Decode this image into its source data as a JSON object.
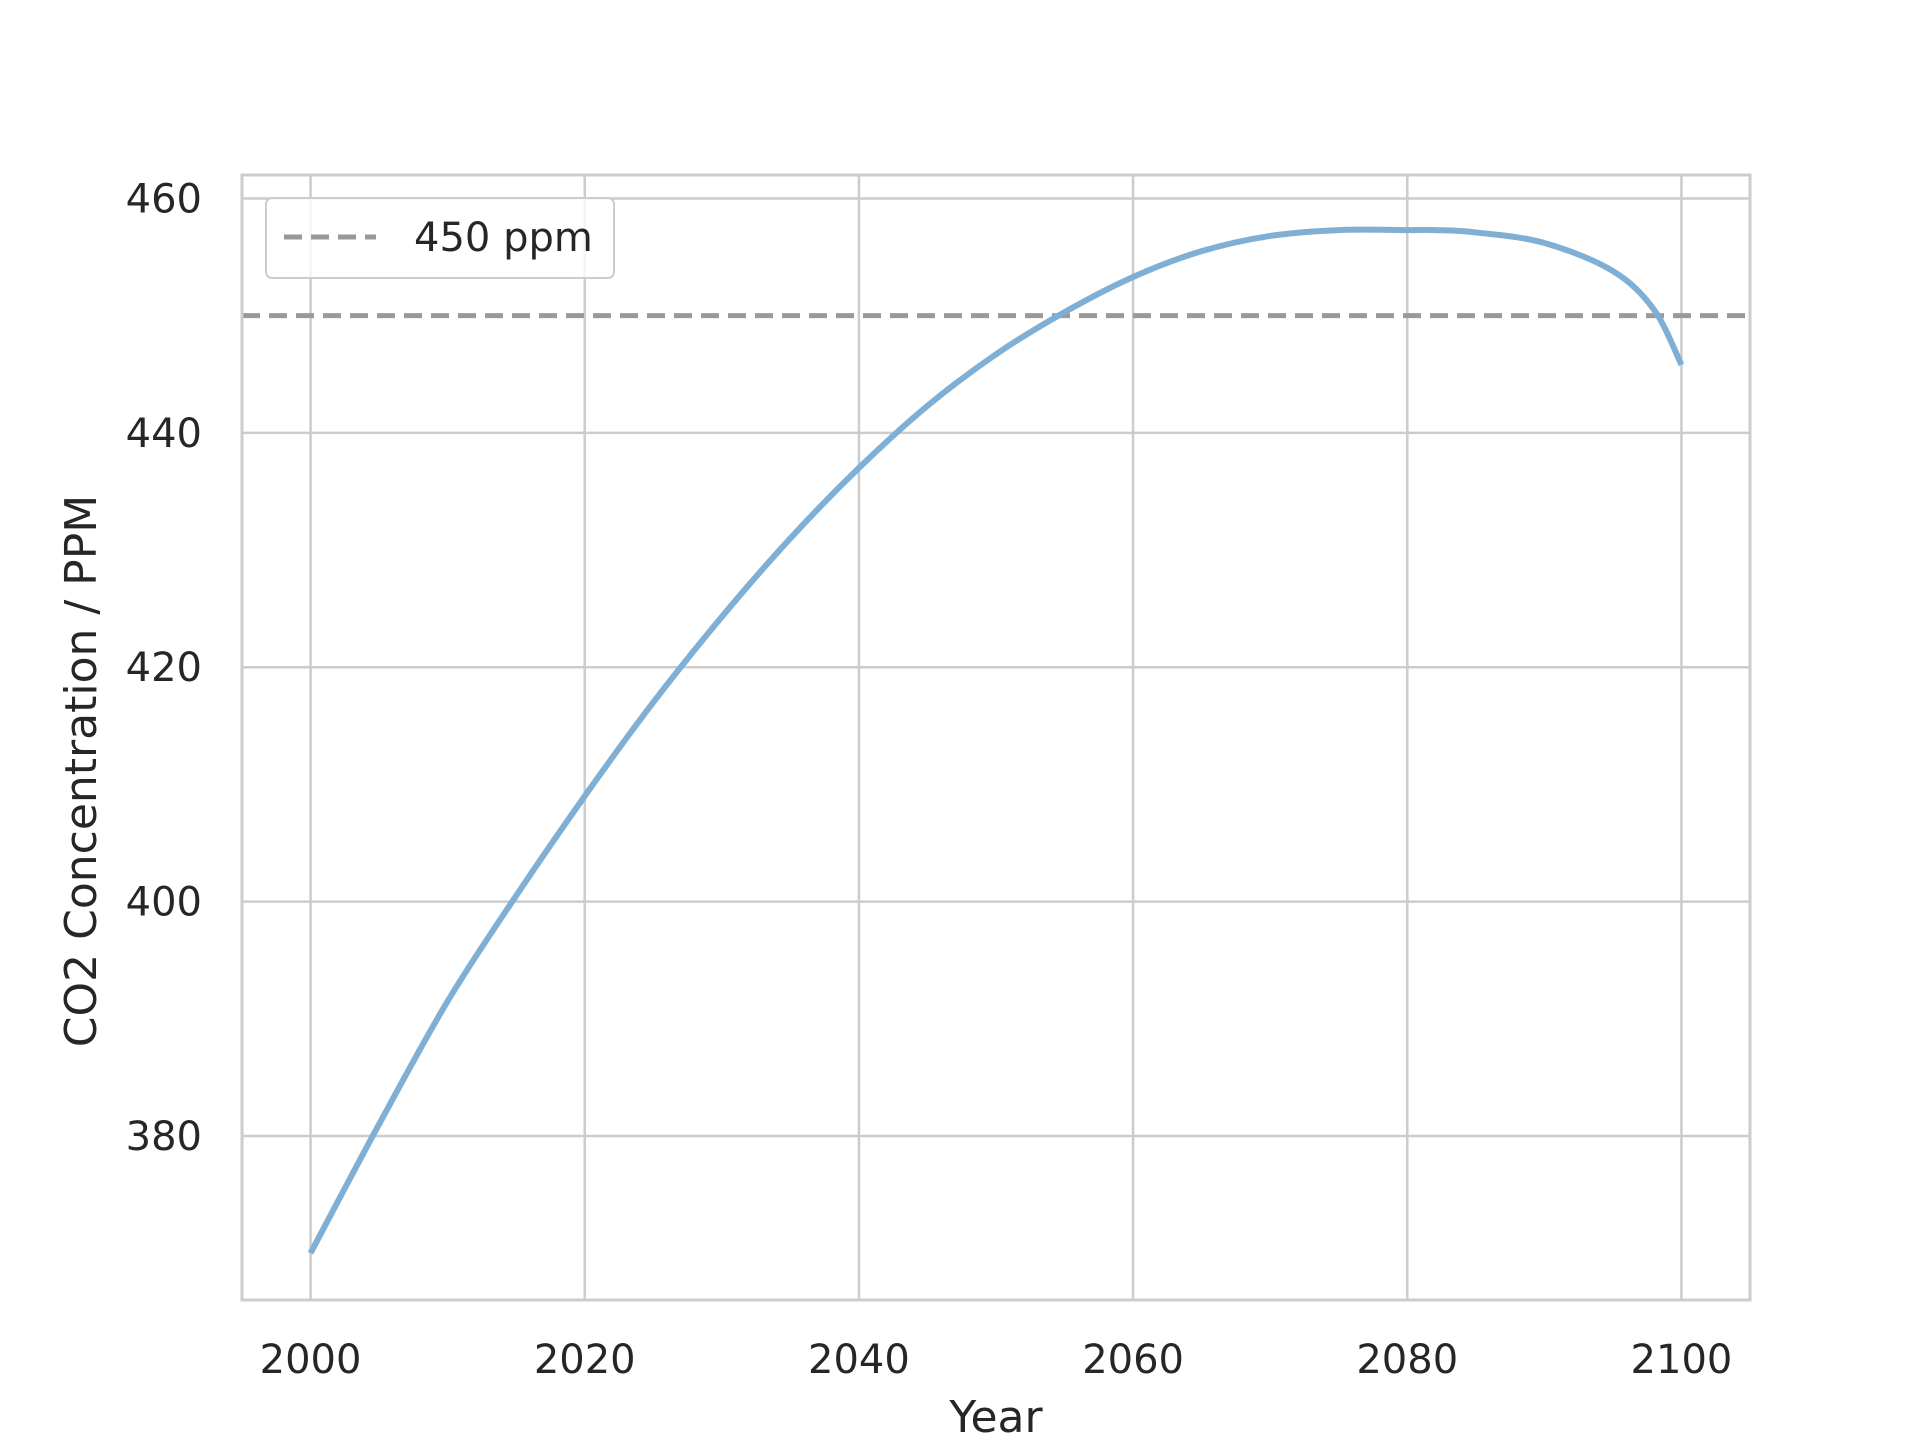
{
  "chart_data": {
    "type": "line",
    "title": "",
    "xlabel": "Year",
    "ylabel": "CO2 Concentration / PPM",
    "xlim": [
      1995,
      2105
    ],
    "ylim": [
      366,
      462
    ],
    "x_ticks": [
      2000,
      2020,
      2040,
      2060,
      2080,
      2100
    ],
    "y_ticks": [
      380,
      400,
      420,
      440,
      460
    ],
    "grid": true,
    "legend_position": "top-left",
    "series": [
      {
        "color": "#7fafd4",
        "x": [
          2000,
          2005,
          2010,
          2015,
          2020,
          2025,
          2030,
          2035,
          2040,
          2045,
          2050,
          2055,
          2060,
          2065,
          2070,
          2075,
          2080,
          2082,
          2085,
          2090,
          2095,
          2098,
          2100
        ],
        "y": [
          370,
          381,
          391.5,
          400.5,
          409,
          417,
          424.3,
          431,
          437,
          442.3,
          446.7,
          450.3,
          453.3,
          455.5,
          456.8,
          457.3,
          457.3,
          457.3,
          457.1,
          456.2,
          453.8,
          450.5,
          445.8
        ]
      }
    ],
    "reference_lines": [
      {
        "name": "450 ppm",
        "y": 450,
        "color": "#999999",
        "style": "dashed"
      }
    ]
  }
}
